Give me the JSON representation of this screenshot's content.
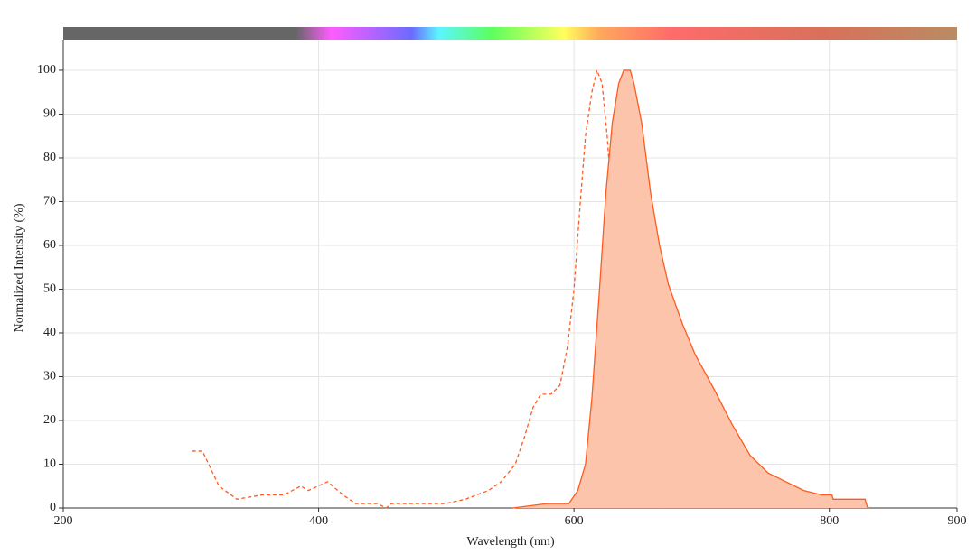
{
  "chart_data": {
    "type": "line",
    "xlabel": "Wavelength (nm)",
    "ylabel": "Normalized Intensity (%)",
    "xlim": [
      200,
      900
    ],
    "xticks": [
      200,
      400,
      600,
      800,
      900
    ],
    "ylim": [
      0,
      107
    ],
    "yticks": [
      0,
      10,
      20,
      30,
      40,
      50,
      60,
      70,
      80,
      90,
      100
    ],
    "grid": true,
    "series": [
      {
        "color": "#ff5a1f",
        "style": "dashed",
        "fill": false,
        "x": [
          301,
          309,
          322,
          336,
          356,
          373,
          386,
          392,
          407,
          419,
          429,
          446,
          453,
          457,
          499,
          515,
          533,
          543,
          554,
          561,
          568,
          574,
          582,
          589,
          595,
          600,
          605,
          609,
          614,
          618,
          622,
          626,
          632,
          639,
          646,
          653,
          660,
          666
        ],
        "values": [
          13,
          13,
          5,
          2,
          3,
          3,
          5,
          4,
          6,
          3,
          1,
          1,
          0,
          1,
          1,
          2,
          4,
          6,
          10,
          16,
          23,
          26,
          26,
          28,
          37,
          50,
          70,
          85,
          95,
          100,
          97,
          85,
          60,
          35,
          18,
          8,
          3,
          0
        ]
      },
      {
        "color": "#ff5a1f",
        "style": "solid",
        "fill": true,
        "fill_color": "#fcc4ab",
        "x": [
          552,
          579,
          596,
          603,
          609,
          614,
          620,
          625,
          630,
          635,
          639,
          644,
          647,
          653,
          660,
          667,
          674,
          685,
          695,
          710,
          724,
          738,
          752,
          766,
          780,
          794,
          802,
          803,
          828,
          830
        ],
        "values": [
          0,
          1,
          1,
          4,
          10,
          25,
          50,
          72,
          88,
          97,
          100,
          100,
          97,
          88,
          72,
          60,
          51,
          42,
          35,
          27,
          19,
          12,
          8,
          6,
          4,
          3,
          3,
          2,
          2,
          0
        ]
      }
    ]
  }
}
